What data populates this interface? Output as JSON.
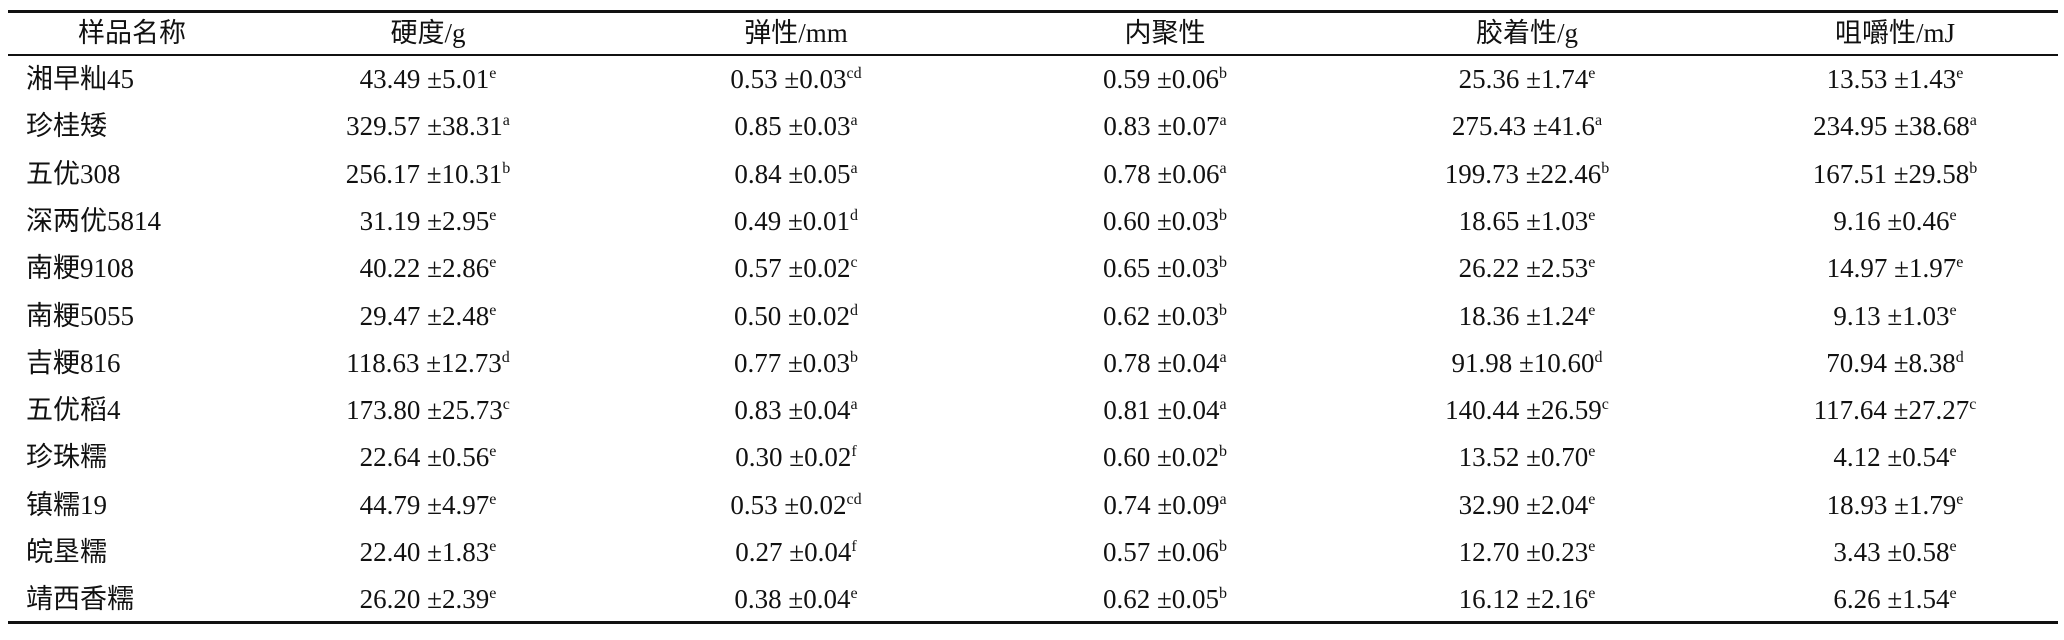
{
  "table": {
    "header": [
      "样品名称",
      "硬度/g",
      "弹性/mm",
      "内聚性",
      "胶着性/g",
      "咀嚼性/mJ"
    ],
    "rows": [
      [
        "湘早籼45",
        {
          "text": "43.49 ±5.01",
          "sup": "e"
        },
        {
          "text": "0.53 ±0.03",
          "sup": "cd"
        },
        {
          "text": "0.59 ±0.06",
          "sup": "b"
        },
        {
          "text": "25.36 ±1.74",
          "sup": "e"
        },
        {
          "text": "13.53 ±1.43",
          "sup": "e"
        }
      ],
      [
        "珍桂矮",
        {
          "text": "329.57 ±38.31",
          "sup": "a"
        },
        {
          "text": "0.85 ±0.03",
          "sup": "a"
        },
        {
          "text": "0.83 ±0.07",
          "sup": "a"
        },
        {
          "text": "275.43 ±41.6",
          "sup": "a"
        },
        {
          "text": "234.95 ±38.68",
          "sup": "a"
        }
      ],
      [
        "五优308",
        {
          "text": "256.17 ±10.31",
          "sup": "b"
        },
        {
          "text": "0.84 ±0.05",
          "sup": "a"
        },
        {
          "text": "0.78 ±0.06",
          "sup": "a"
        },
        {
          "text": "199.73 ±22.46",
          "sup": "b"
        },
        {
          "text": "167.51 ±29.58",
          "sup": "b"
        }
      ],
      [
        "深两优5814",
        {
          "text": "31.19 ±2.95",
          "sup": "e"
        },
        {
          "text": "0.49 ±0.01",
          "sup": "d"
        },
        {
          "text": "0.60 ±0.03",
          "sup": "b"
        },
        {
          "text": "18.65 ±1.03",
          "sup": "e"
        },
        {
          "text": "9.16 ±0.46",
          "sup": "e"
        }
      ],
      [
        "南粳9108",
        {
          "text": "40.22 ±2.86",
          "sup": "e"
        },
        {
          "text": "0.57 ±0.02",
          "sup": "c"
        },
        {
          "text": "0.65 ±0.03",
          "sup": "b"
        },
        {
          "text": "26.22 ±2.53",
          "sup": "e"
        },
        {
          "text": "14.97 ±1.97",
          "sup": "e"
        }
      ],
      [
        "南粳5055",
        {
          "text": "29.47 ±2.48",
          "sup": "e"
        },
        {
          "text": "0.50 ±0.02",
          "sup": "d"
        },
        {
          "text": "0.62 ±0.03",
          "sup": "b"
        },
        {
          "text": "18.36 ±1.24",
          "sup": "e"
        },
        {
          "text": "9.13 ±1.03",
          "sup": "e"
        }
      ],
      [
        "吉粳816",
        {
          "text": "118.63 ±12.73",
          "sup": "d"
        },
        {
          "text": "0.77 ±0.03",
          "sup": "b"
        },
        {
          "text": "0.78 ±0.04",
          "sup": "a"
        },
        {
          "text": "91.98 ±10.60",
          "sup": "d"
        },
        {
          "text": "70.94 ±8.38",
          "sup": "d"
        }
      ],
      [
        "五优稻4",
        {
          "text": "173.80 ±25.73",
          "sup": "c"
        },
        {
          "text": "0.83 ±0.04",
          "sup": "a"
        },
        {
          "text": "0.81 ±0.04",
          "sup": "a"
        },
        {
          "text": "140.44 ±26.59",
          "sup": "c"
        },
        {
          "text": "117.64 ±27.27",
          "sup": "c"
        }
      ],
      [
        "珍珠糯",
        {
          "text": "22.64 ±0.56",
          "sup": "e"
        },
        {
          "text": "0.30 ±0.02",
          "sup": "f"
        },
        {
          "text": "0.60 ±0.02",
          "sup": "b"
        },
        {
          "text": "13.52 ±0.70",
          "sup": "e"
        },
        {
          "text": "4.12 ±0.54",
          "sup": "e"
        }
      ],
      [
        "镇糯19",
        {
          "text": "44.79 ±4.97",
          "sup": "e"
        },
        {
          "text": "0.53 ±0.02",
          "sup": "cd"
        },
        {
          "text": "0.74 ±0.09",
          "sup": "a"
        },
        {
          "text": "32.90 ±2.04",
          "sup": "e"
        },
        {
          "text": "18.93 ±1.79",
          "sup": "e"
        }
      ],
      [
        "皖垦糯",
        {
          "text": "22.40 ±1.83",
          "sup": "e"
        },
        {
          "text": "0.27 ±0.04",
          "sup": "f"
        },
        {
          "text": "0.57 ±0.06",
          "sup": "b"
        },
        {
          "text": "12.70 ±0.23",
          "sup": "e"
        },
        {
          "text": "3.43 ±0.58",
          "sup": "e"
        }
      ],
      [
        "靖西香糯",
        {
          "text": "26.20 ±2.39",
          "sup": "e"
        },
        {
          "text": "0.38 ±0.04",
          "sup": "e"
        },
        {
          "text": "0.62 ±0.05",
          "sup": "b"
        },
        {
          "text": "16.12 ±2.16",
          "sup": "e"
        },
        {
          "text": "6.26 ±1.54",
          "sup": "e"
        }
      ]
    ]
  }
}
